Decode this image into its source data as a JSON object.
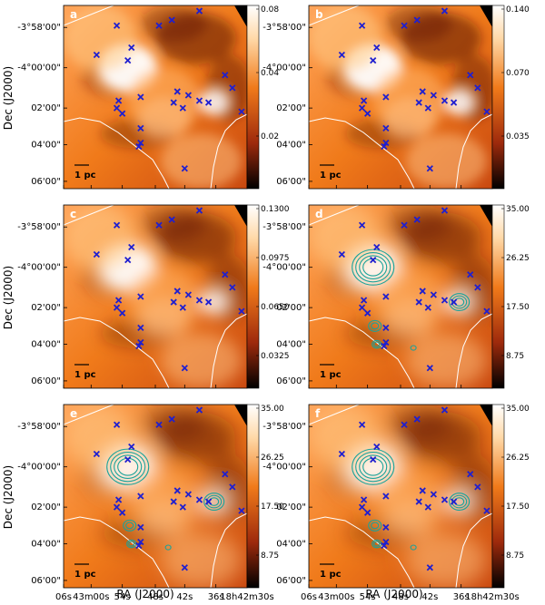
{
  "figure": {
    "ylabel": "Dec (J2000)",
    "xlabel": "RA (J2000)",
    "scalebar_label": "1 pc",
    "ra_ticks": [
      "06s",
      "43m00s",
      "54s",
      "48s",
      "42s",
      "36s",
      "18h42m30s"
    ],
    "dec_ticks": [
      "-3°58'00\"",
      "-4°00'00\"",
      "02'00\"",
      "04'00\"",
      "06'00\""
    ],
    "colors": {
      "map_light": "#ffffff",
      "map_mid": "#f07a1a",
      "map_dark": "#5a1408",
      "marker": "#1f1fd0",
      "contour": "#1aa39a",
      "boundary": "#ffffff"
    }
  },
  "chart_data": [
    {
      "panel": "a",
      "type": "heatmap",
      "colorbar_ticks": [
        "0.08",
        "0.04",
        "0.02"
      ],
      "contours": false,
      "smooth": 1.0
    },
    {
      "panel": "b",
      "type": "heatmap",
      "colorbar_ticks": [
        "0.140",
        "0.070",
        "0.035"
      ],
      "contours": false,
      "smooth": 1.0
    },
    {
      "panel": "c",
      "type": "heatmap",
      "colorbar_ticks": [
        "0.1300",
        "0.0975",
        "0.0650",
        "0.0325"
      ],
      "contours": false,
      "smooth": 1.4
    },
    {
      "panel": "d",
      "type": "heatmap",
      "colorbar_ticks": [
        "35.00",
        "26.25",
        "17.50",
        "8.75"
      ],
      "contours": true,
      "smooth": 1.6
    },
    {
      "panel": "e",
      "type": "heatmap",
      "colorbar_ticks": [
        "35.00",
        "26.25",
        "17.50",
        "8.75"
      ],
      "contours": true,
      "smooth": 1.8
    },
    {
      "panel": "f",
      "type": "heatmap",
      "colorbar_ticks": [
        "35.00",
        "26.25",
        "17.50",
        "8.75"
      ],
      "contours": true,
      "smooth": 1.8
    }
  ]
}
